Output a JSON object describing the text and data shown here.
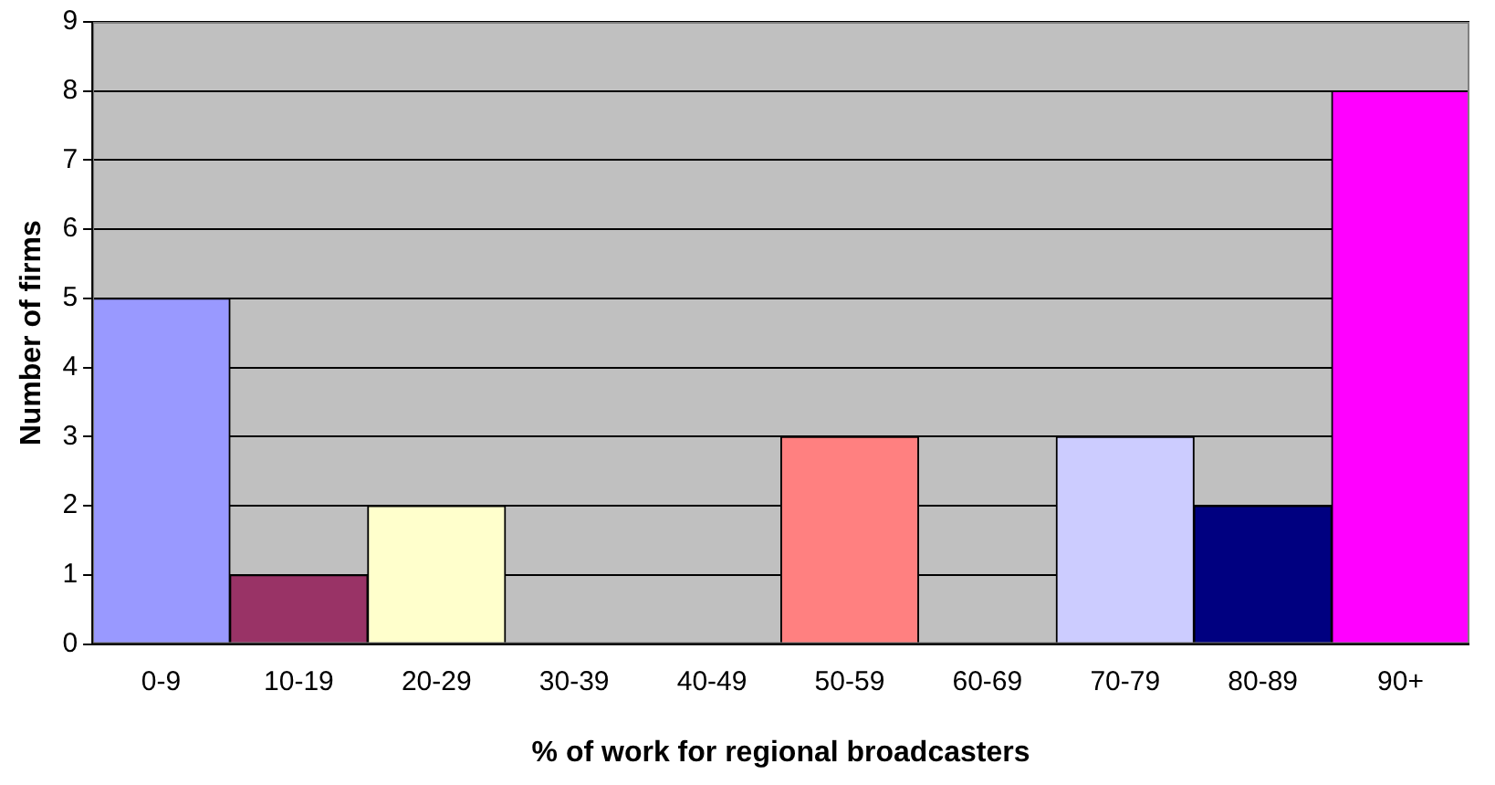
{
  "chart_data": {
    "type": "bar",
    "xlabel": "% of work for regional broadcasters",
    "ylabel": "Number of firms",
    "categories": [
      "0-9",
      "10-19",
      "20-29",
      "30-39",
      "40-49",
      "50-59",
      "60-69",
      "70-79",
      "80-89",
      "90+"
    ],
    "values": [
      5,
      1,
      2,
      0,
      0,
      3,
      0,
      3,
      2,
      8
    ],
    "colors": [
      "#9999ff",
      "#993366",
      "#ffffcc",
      "#ccffff",
      "#660066",
      "#ff8080",
      "#0066cc",
      "#ccccff",
      "#000080",
      "#ff00ff"
    ],
    "ylim": [
      0,
      9
    ],
    "yticks": [
      0,
      1,
      2,
      3,
      4,
      5,
      6,
      7,
      8,
      9
    ],
    "grid": "y",
    "legend": false
  }
}
